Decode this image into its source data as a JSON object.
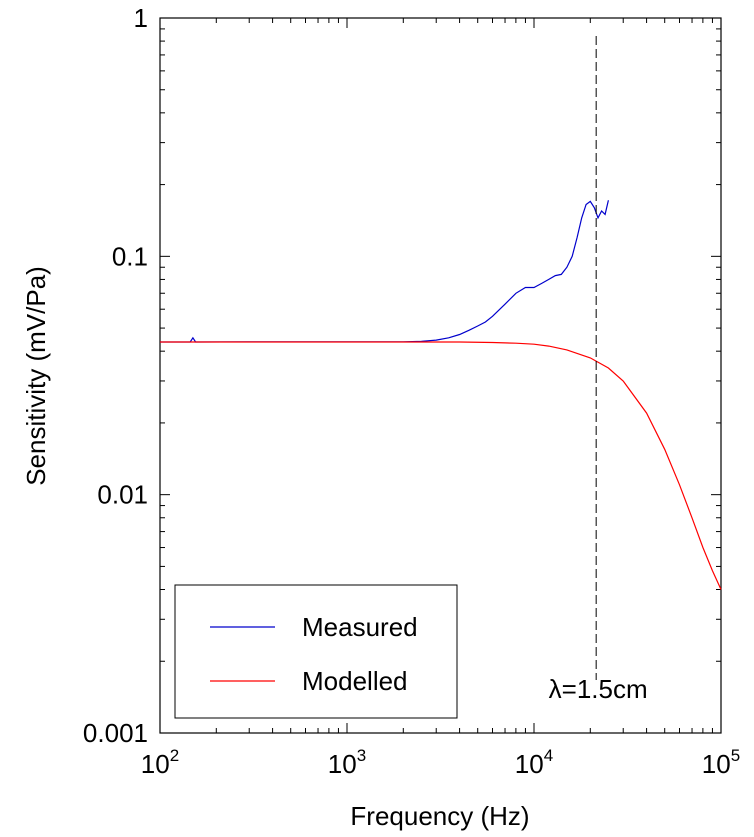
{
  "chart_data": {
    "type": "line",
    "title": "",
    "xlabel": "Frequency (Hz)",
    "ylabel": "Sensitivity (mV/Pa)",
    "x_scale": "log",
    "y_scale": "log",
    "xlim": [
      100,
      100000
    ],
    "ylim": [
      0.001,
      1
    ],
    "x_ticks": [
      {
        "value": 100,
        "base": "10",
        "exp": "2"
      },
      {
        "value": 1000,
        "base": "10",
        "exp": "3"
      },
      {
        "value": 10000,
        "base": "10",
        "exp": "4"
      },
      {
        "value": 100000,
        "base": "10",
        "exp": "5"
      }
    ],
    "y_ticks": [
      {
        "value": 1,
        "label": "1"
      },
      {
        "value": 0.1,
        "label": "0.1"
      },
      {
        "value": 0.01,
        "label": "0.01"
      },
      {
        "value": 0.001,
        "label": "0.001"
      }
    ],
    "grid": false,
    "legend_position": "bottom-left",
    "series": [
      {
        "name": "Measured",
        "color": "#0000cc",
        "x": [
          100,
          145,
          150,
          155,
          300,
          600,
          1000,
          1500,
          2000,
          2500,
          3000,
          3500,
          4000,
          4500,
          5000,
          5500,
          6000,
          7000,
          8000,
          9000,
          10000,
          11000,
          12000,
          13000,
          14000,
          15000,
          16000,
          17000,
          18000,
          19000,
          20000,
          21000,
          22000,
          23000,
          24000,
          25000
        ],
        "y": [
          0.0437,
          0.0437,
          0.0455,
          0.0437,
          0.0438,
          0.0438,
          0.0438,
          0.0438,
          0.0438,
          0.044,
          0.0445,
          0.0455,
          0.047,
          0.049,
          0.051,
          0.053,
          0.056,
          0.063,
          0.07,
          0.074,
          0.074,
          0.077,
          0.08,
          0.083,
          0.084,
          0.09,
          0.1,
          0.12,
          0.145,
          0.165,
          0.17,
          0.16,
          0.145,
          0.155,
          0.15,
          0.172
        ]
      },
      {
        "name": "Modelled",
        "color": "#ff0000",
        "x": [
          100,
          1000,
          2000,
          4000,
          6000,
          8000,
          10000,
          12000,
          15000,
          20000,
          25000,
          30000,
          40000,
          50000,
          60000,
          70000,
          80000,
          90000,
          100000
        ],
        "y": [
          0.0437,
          0.0437,
          0.0437,
          0.0437,
          0.0435,
          0.0432,
          0.0428,
          0.042,
          0.0405,
          0.0375,
          0.034,
          0.03,
          0.022,
          0.0155,
          0.011,
          0.008,
          0.006,
          0.0048,
          0.004
        ]
      }
    ],
    "annotations": [
      {
        "type": "vertical-line",
        "x": 21500,
        "style": "dashed",
        "label": "λ=1.5cm"
      }
    ]
  }
}
